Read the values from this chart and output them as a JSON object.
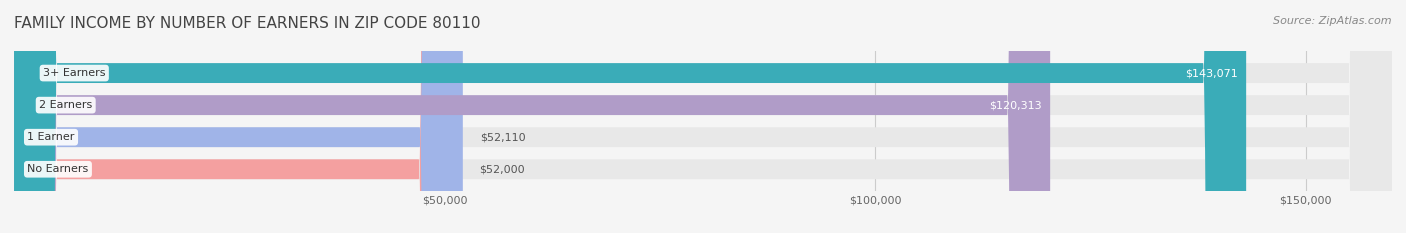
{
  "title": "FAMILY INCOME BY NUMBER OF EARNERS IN ZIP CODE 80110",
  "source": "Source: ZipAtlas.com",
  "categories": [
    "No Earners",
    "1 Earner",
    "2 Earners",
    "3+ Earners"
  ],
  "values": [
    52000,
    52110,
    120313,
    143071
  ],
  "labels": [
    "$52,000",
    "$52,110",
    "$120,313",
    "$143,071"
  ],
  "bar_colors": [
    "#f4a0a0",
    "#a0b4e8",
    "#b09cc8",
    "#3aacb8"
  ],
  "background_color": "#f5f5f5",
  "bar_bg_color": "#e8e8e8",
  "xmin": 0,
  "xmax": 160000,
  "xticks": [
    50000,
    100000,
    150000
  ],
  "xtick_labels": [
    "$50,000",
    "$100,000",
    "$150,000"
  ],
  "title_fontsize": 11,
  "source_fontsize": 8,
  "bar_label_fontsize": 8,
  "category_fontsize": 8
}
